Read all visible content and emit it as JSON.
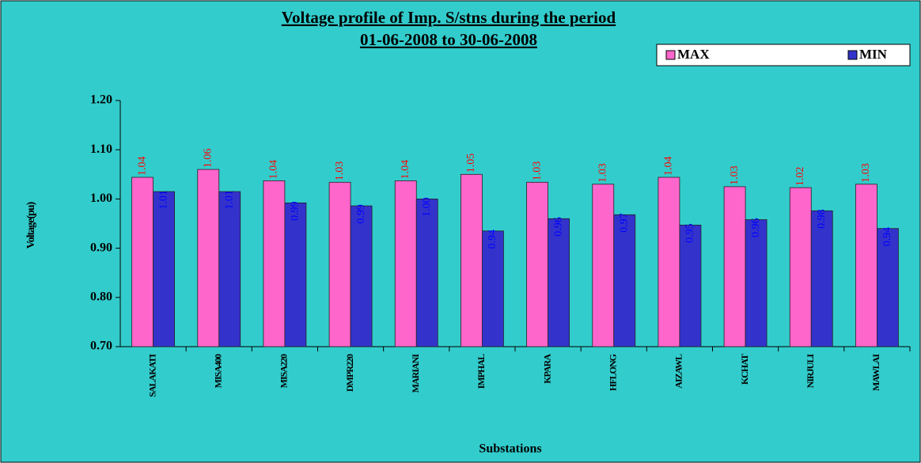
{
  "chart_data": {
    "type": "bar",
    "title": "Voltage profile of Imp. S/stns during the period",
    "subtitle": "01-06-2008 to 30-06-2008",
    "x_label": "Substations",
    "y_label": "Voltage(pu)",
    "categories": [
      "SALAKATI",
      "MISA400",
      "MISA220",
      "DMPR220",
      "MARIANI",
      "IMPHAL",
      "KPARA",
      "HFLONG",
      "AIZAWL",
      "KCHAT",
      "NIRJULI",
      "MAWLAI"
    ],
    "series": [
      {
        "name": "MAX",
        "color": "#ff66cc",
        "label_color": "#ff0000",
        "values": [
          1.044,
          1.06,
          1.037,
          1.034,
          1.037,
          1.05,
          1.034,
          1.03,
          1.044,
          1.025,
          1.023,
          1.03
        ],
        "value_labels": [
          "1.04",
          "1.06",
          "1.04",
          "1.03",
          "1.04",
          "1.05",
          "1.03",
          "1.03",
          "1.04",
          "1.03",
          "1.02",
          "1.03"
        ]
      },
      {
        "name": "MIN",
        "color": "#3333cc",
        "label_color": "#0000ff",
        "values": [
          1.015,
          1.015,
          0.992,
          0.986,
          1.0,
          0.935,
          0.96,
          0.968,
          0.947,
          0.958,
          0.976,
          0.94
        ],
        "value_labels": [
          "1.01",
          "1.01",
          "0.99",
          "0.99",
          "1.00",
          "0.94",
          "0.96",
          "0.97",
          "0.95",
          "0.96",
          "0.98",
          "0.94"
        ]
      }
    ],
    "ylim": [
      0.7,
      1.2
    ],
    "yticks": [
      {
        "value": 0.7,
        "label": "0.70"
      },
      {
        "value": 0.8,
        "label": "0.80"
      },
      {
        "value": 0.9,
        "label": "0.90"
      },
      {
        "value": 1.0,
        "label": "1.00"
      },
      {
        "value": 1.1,
        "label": "1.10"
      },
      {
        "value": 1.2,
        "label": "1.20"
      }
    ],
    "grid": false,
    "legend": "top-right"
  }
}
